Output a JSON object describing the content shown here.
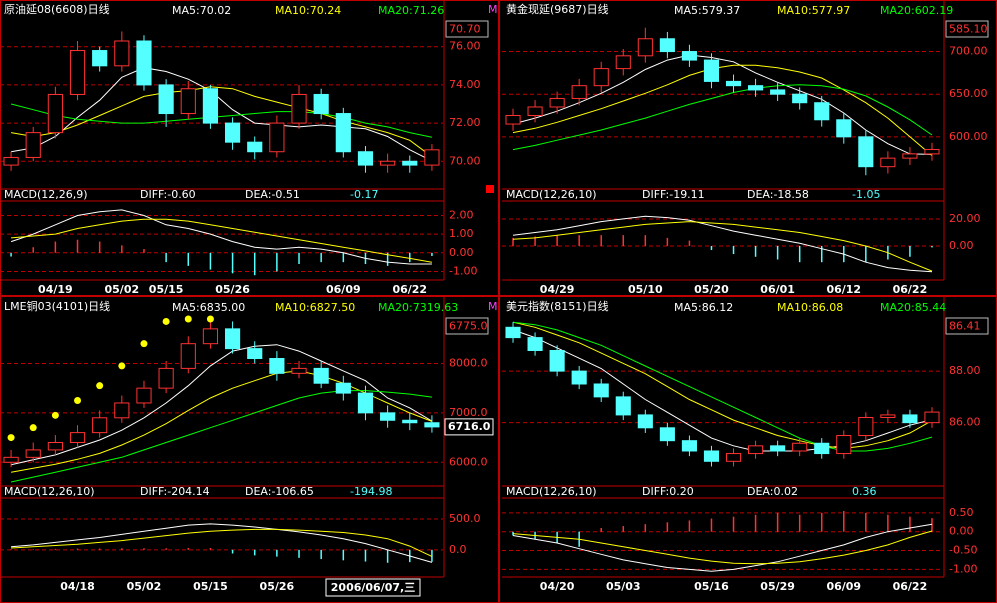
{
  "chart_data": [
    {
      "type": "candlestick",
      "title": "原油延08(6608)日线",
      "overflow_label": "M",
      "price_box": "70.70",
      "categories": [
        null,
        null,
        "04/19",
        null,
        null,
        "05/02",
        null,
        "05/15",
        null,
        null,
        "05/26",
        null,
        null,
        null,
        null,
        "06/09",
        null,
        null,
        "06/22",
        null
      ],
      "open": [
        69.8,
        70.2,
        71.5,
        73.5,
        75.8,
        75.0,
        76.3,
        74.0,
        72.5,
        73.8,
        72.0,
        71.0,
        70.5,
        72.0,
        73.5,
        72.5,
        70.5,
        69.8,
        70.0,
        69.8
      ],
      "high": [
        70.5,
        71.8,
        73.9,
        76.3,
        76.0,
        76.8,
        76.6,
        74.3,
        74.2,
        74.0,
        72.3,
        71.3,
        72.4,
        74.0,
        73.8,
        72.8,
        70.8,
        70.4,
        70.3,
        70.9
      ],
      "low": [
        69.5,
        70.0,
        71.2,
        73.2,
        74.7,
        74.7,
        73.7,
        71.8,
        72.2,
        71.7,
        70.6,
        70.1,
        70.2,
        71.7,
        72.2,
        70.2,
        69.4,
        69.4,
        69.4,
        69.5
      ],
      "close": [
        70.2,
        71.5,
        73.5,
        75.8,
        75.0,
        76.3,
        74.0,
        72.5,
        73.8,
        72.0,
        71.0,
        70.5,
        72.0,
        73.5,
        72.5,
        70.5,
        69.8,
        70.0,
        69.8,
        70.6
      ],
      "series": [
        {
          "name": "MA5:70.02",
          "color": "#ffffff",
          "values": [
            70.5,
            70.7,
            71.3,
            72.3,
            73.2,
            74.4,
            74.9,
            74.7,
            74.3,
            73.7,
            72.7,
            72.0,
            71.9,
            71.8,
            71.9,
            71.8,
            71.7,
            71.3,
            70.6,
            70.02
          ]
        },
        {
          "name": "MA10:70.24",
          "color": "#ffff00",
          "values": [
            71.5,
            71.3,
            71.5,
            71.9,
            72.4,
            72.9,
            73.4,
            73.6,
            73.7,
            73.9,
            73.8,
            73.4,
            73.1,
            72.8,
            72.5,
            72.1,
            71.8,
            71.5,
            71.1,
            70.24
          ]
        },
        {
          "name": "MA20:71.26",
          "color": "#00ff00",
          "values": [
            73.0,
            72.7,
            72.4,
            72.2,
            72.1,
            72.0,
            72.0,
            72.1,
            72.2,
            72.3,
            72.4,
            72.5,
            72.6,
            72.6,
            72.5,
            72.3,
            72.0,
            71.8,
            71.5,
            71.26
          ]
        }
      ],
      "ylim": [
        68.6,
        77.4
      ],
      "yticks": [
        {
          "value": 70,
          "label": "70.00"
        },
        {
          "value": 72,
          "label": "72.00"
        },
        {
          "value": 74,
          "label": "74.00"
        },
        {
          "value": 76,
          "label": "76.00"
        }
      ],
      "macd": {
        "title": "MACD(12,26,9)",
        "diff_label": "DIFF:-0.60",
        "dea_label": "DEA:-0.51",
        "macd_label": "-0.17",
        "diff": [
          0.6,
          1.0,
          1.5,
          2.0,
          2.2,
          2.3,
          2.0,
          1.5,
          1.3,
          1.0,
          0.6,
          0.3,
          0.2,
          0.3,
          0.2,
          0.0,
          -0.3,
          -0.5,
          -0.6,
          -0.6
        ],
        "dea": [
          0.8,
          0.9,
          1.0,
          1.3,
          1.5,
          1.7,
          1.8,
          1.8,
          1.7,
          1.5,
          1.3,
          1.1,
          0.9,
          0.7,
          0.5,
          0.3,
          0.1,
          -0.1,
          -0.3,
          -0.51
        ],
        "hist": [
          -0.2,
          0.3,
          0.6,
          0.7,
          0.6,
          0.4,
          0.2,
          -0.5,
          -0.7,
          -0.9,
          -1.1,
          -1.2,
          -1.0,
          -0.6,
          -0.5,
          -0.5,
          -0.6,
          -0.7,
          -0.5,
          -0.17
        ],
        "ylim": [
          -1.35,
          2.4
        ],
        "yticks": [
          {
            "value": -1,
            "label": "-1.00"
          },
          {
            "value": 0,
            "label": "0.00"
          },
          {
            "value": 1,
            "label": "1.00"
          },
          {
            "value": 2,
            "label": "2.00"
          }
        ]
      }
    },
    {
      "type": "candlestick",
      "title": "黄金现延(9687)日线",
      "price_box": "585.10",
      "categories": [
        null,
        null,
        "04/29",
        null,
        null,
        null,
        "05/10",
        null,
        null,
        "05/20",
        null,
        null,
        "06/01",
        null,
        null,
        "06/12",
        null,
        null,
        "06/22",
        null
      ],
      "open": [
        615,
        625,
        635,
        645,
        660,
        680,
        695,
        715,
        700,
        690,
        665,
        660,
        655,
        650,
        640,
        620,
        600,
        565,
        575,
        580
      ],
      "high": [
        633,
        643,
        653,
        668,
        688,
        703,
        728,
        723,
        708,
        698,
        673,
        668,
        663,
        658,
        648,
        628,
        608,
        583,
        588,
        593
      ],
      "low": [
        607,
        617,
        627,
        637,
        652,
        672,
        687,
        692,
        682,
        657,
        652,
        647,
        642,
        632,
        612,
        592,
        555,
        557,
        567,
        572
      ],
      "close": [
        625,
        635,
        645,
        660,
        680,
        695,
        715,
        700,
        690,
        665,
        660,
        655,
        650,
        640,
        620,
        600,
        565,
        575,
        580,
        585.1
      ],
      "series": [
        {
          "name": "MA5:579.37",
          "color": "#ffffff",
          "values": [
            615,
            622,
            630,
            640,
            651,
            664,
            679,
            690,
            696,
            693,
            688,
            675,
            664,
            654,
            644,
            628,
            608,
            592,
            580,
            579.37
          ]
        },
        {
          "name": "MA10:577.97",
          "color": "#ffff00",
          "values": [
            605,
            610,
            617,
            625,
            633,
            642,
            651,
            661,
            672,
            680,
            684,
            684,
            681,
            676,
            669,
            655,
            640,
            622,
            600,
            577.97
          ]
        },
        {
          "name": "MA20:602.19",
          "color": "#00ff00",
          "values": [
            585,
            590,
            596,
            602,
            608,
            615,
            622,
            630,
            638,
            645,
            652,
            657,
            660,
            661,
            660,
            656,
            648,
            635,
            620,
            602.19
          ]
        }
      ],
      "ylim": [
        540,
        737
      ],
      "yticks": [
        {
          "value": 600,
          "label": "600.00"
        },
        {
          "value": 650,
          "label": "650.00"
        },
        {
          "value": 700,
          "label": "700.00"
        }
      ],
      "macd": {
        "title": "MACD(12,26,10)",
        "diff_label": "DIFF:-19.11",
        "dea_label": "DEA:-18.58",
        "macd_label": "-1.05",
        "diff": [
          8,
          10,
          12,
          15,
          18,
          20,
          22,
          21,
          19,
          15,
          11,
          8,
          5,
          2,
          -2,
          -6,
          -12,
          -16,
          -18,
          -19.11
        ],
        "dea": [
          5,
          6,
          8,
          10,
          12,
          14,
          16,
          17,
          18,
          17,
          16,
          14,
          12,
          10,
          7,
          4,
          0,
          -5,
          -12,
          -18.58
        ],
        "hist": [
          6,
          7,
          8,
          8,
          8,
          8,
          8,
          6,
          4,
          -3,
          -6,
          -8,
          -10,
          -12,
          -12,
          -12,
          -12,
          -10,
          -8,
          -1.05
        ],
        "ylim": [
          -23.7,
          28.1
        ],
        "yticks": [
          {
            "value": 0,
            "label": "0.00"
          },
          {
            "value": 20,
            "label": "20.00"
          }
        ]
      }
    },
    {
      "type": "candlestick",
      "title": "LME铜03(4101)日线",
      "overflow_label": "M",
      "price_box": "6775.0",
      "current_price": {
        "value": 6716,
        "label": "6716.0"
      },
      "cursor_label": "2006/06/07,三",
      "categories": [
        null,
        null,
        null,
        "04/18",
        null,
        null,
        "05/02",
        null,
        null,
        "05/15",
        null,
        null,
        "05/26",
        null,
        null,
        null,
        null,
        null,
        null,
        null
      ],
      "open": [
        6000,
        6100,
        6250,
        6400,
        6600,
        6900,
        7200,
        7500,
        7900,
        8400,
        8700,
        8300,
        8100,
        7800,
        7900,
        7600,
        7400,
        7000,
        6850,
        6800
      ],
      "high": [
        6250,
        6400,
        6550,
        6750,
        7050,
        7350,
        7650,
        8050,
        8550,
        8850,
        8850,
        8450,
        8250,
        8050,
        8050,
        7750,
        7550,
        7150,
        7000,
        6950
      ],
      "low": [
        5900,
        6000,
        6150,
        6300,
        6500,
        6800,
        7100,
        7400,
        7800,
        8300,
        8200,
        8000,
        7650,
        7700,
        7500,
        7250,
        6850,
        6700,
        6650,
        6600
      ],
      "close": [
        6100,
        6250,
        6400,
        6600,
        6900,
        7200,
        7500,
        7900,
        8400,
        8700,
        8300,
        8100,
        7800,
        7900,
        7600,
        7400,
        7000,
        6850,
        6800,
        6716
      ],
      "dots": [
        6500,
        6700,
        6950,
        7250,
        7550,
        7950,
        8400,
        8850,
        8900,
        8900,
        null,
        null,
        null,
        null,
        null,
        null,
        null,
        null,
        null,
        null
      ],
      "series": [
        {
          "name": "MA5:6835.00",
          "color": "#ffffff",
          "values": [
            5950,
            6050,
            6150,
            6300,
            6450,
            6650,
            6900,
            7200,
            7550,
            7950,
            8250,
            8350,
            8380,
            8250,
            8050,
            7850,
            7650,
            7300,
            7100,
            6835
          ]
        },
        {
          "name": "MA10:6827.50",
          "color": "#ffff00",
          "values": [
            5800,
            5880,
            5960,
            6060,
            6180,
            6350,
            6550,
            6780,
            7050,
            7300,
            7500,
            7650,
            7800,
            7850,
            7750,
            7600,
            7400,
            7200,
            7000,
            6827.5
          ]
        },
        {
          "name": "MA20:7319.63",
          "color": "#00ff00",
          "values": [
            5600,
            5700,
            5800,
            5900,
            6000,
            6100,
            6250,
            6400,
            6550,
            6700,
            6850,
            7000,
            7150,
            7300,
            7400,
            7450,
            7450,
            7420,
            7380,
            7319.63
          ]
        }
      ],
      "ylim": [
        5540,
        8940
      ],
      "yticks": [
        {
          "value": 6000,
          "label": "6000.0"
        },
        {
          "value": 7000,
          "label": "7000.0"
        },
        {
          "value": 8000,
          "label": "8000.0"
        }
      ],
      "macd": {
        "title": "MACD(12,26,10)",
        "diff_label": "DIFF:-204.14",
        "dea_label": "DEA:-106.65",
        "macd_label": "-194.98",
        "diff": [
          50,
          80,
          120,
          160,
          200,
          250,
          300,
          350,
          400,
          420,
          400,
          370,
          330,
          290,
          240,
          180,
          100,
          0,
          -100,
          -204.14
        ],
        "dea": [
          30,
          50,
          70,
          90,
          120,
          150,
          190,
          230,
          270,
          300,
          320,
          330,
          330,
          320,
          300,
          280,
          240,
          180,
          60,
          -106.65
        ],
        "hist": [
          10,
          10,
          15,
          20,
          20,
          25,
          25,
          25,
          30,
          30,
          -60,
          -90,
          -110,
          -130,
          -150,
          -170,
          -190,
          -210,
          -200,
          -194.98
        ],
        "ylim": [
          -408,
          726
        ],
        "yticks": [
          {
            "value": 0,
            "label": "0.0"
          },
          {
            "value": 500,
            "label": "500.0"
          }
        ]
      }
    },
    {
      "type": "candlestick",
      "title": "美元指数(8151)日线",
      "price_box": "86.41",
      "categories": [
        null,
        null,
        "04/20",
        null,
        null,
        "05/03",
        null,
        null,
        null,
        "05/16",
        null,
        null,
        "05/29",
        null,
        null,
        "06/09",
        null,
        null,
        "06/22",
        null
      ],
      "open": [
        89.7,
        89.3,
        88.8,
        88.0,
        87.5,
        87.0,
        86.3,
        85.8,
        85.3,
        84.9,
        84.5,
        84.8,
        85.1,
        84.9,
        85.2,
        84.8,
        85.5,
        86.2,
        86.3,
        86.0
      ],
      "high": [
        89.9,
        89.5,
        89.0,
        88.2,
        87.7,
        87.2,
        86.5,
        86.0,
        85.5,
        85.1,
        85.0,
        85.3,
        85.3,
        85.4,
        85.4,
        85.7,
        86.4,
        86.5,
        86.5,
        86.6
      ],
      "low": [
        89.1,
        88.6,
        87.8,
        87.3,
        86.8,
        86.1,
        85.6,
        85.1,
        84.7,
        84.3,
        84.3,
        84.6,
        84.7,
        84.7,
        84.6,
        84.6,
        85.3,
        86.0,
        85.8,
        85.8
      ],
      "close": [
        89.3,
        88.8,
        88.0,
        87.5,
        87.0,
        86.3,
        85.8,
        85.3,
        84.9,
        84.5,
        84.8,
        85.1,
        84.9,
        85.2,
        84.8,
        85.5,
        86.2,
        86.3,
        86.0,
        86.41
      ],
      "series": [
        {
          "name": "MA5:86.12",
          "color": "#ffffff",
          "values": [
            89.6,
            89.3,
            88.9,
            88.5,
            88.1,
            87.5,
            86.9,
            86.4,
            85.9,
            85.4,
            85.1,
            84.9,
            84.9,
            84.9,
            85.0,
            85.1,
            85.3,
            85.6,
            85.9,
            86.12
          ]
        },
        {
          "name": "MA10:86.08",
          "color": "#ffff00",
          "values": [
            89.9,
            89.7,
            89.4,
            89.1,
            88.7,
            88.3,
            87.9,
            87.4,
            86.9,
            86.5,
            86.1,
            85.8,
            85.5,
            85.3,
            85.1,
            85.0,
            85.1,
            85.3,
            85.6,
            86.08
          ]
        },
        {
          "name": "MA20:85.44",
          "color": "#00ff00",
          "values": [
            89.9,
            89.8,
            89.6,
            89.3,
            89.0,
            88.6,
            88.2,
            87.8,
            87.4,
            87.0,
            86.6,
            86.2,
            85.8,
            85.4,
            85.1,
            84.9,
            84.9,
            85.0,
            85.2,
            85.44
          ]
        }
      ],
      "ylim": [
        83.58,
        90.1
      ],
      "yticks": [
        {
          "value": 86,
          "label": "86.00"
        },
        {
          "value": 88,
          "label": "88.00"
        }
      ],
      "macd": {
        "title": "MACD(12,26,10)",
        "diff_label": "DIFF:0.20",
        "dea_label": "DEA:0.02",
        "macd_label": "0.36",
        "diff": [
          -0.1,
          -0.2,
          -0.3,
          -0.45,
          -0.6,
          -0.75,
          -0.85,
          -0.95,
          -1.0,
          -1.05,
          -1.0,
          -0.9,
          -0.8,
          -0.65,
          -0.5,
          -0.35,
          -0.15,
          0.0,
          0.1,
          0.2
        ],
        "dea": [
          -0.05,
          -0.1,
          -0.15,
          -0.2,
          -0.3,
          -0.4,
          -0.5,
          -0.6,
          -0.7,
          -0.78,
          -0.84,
          -0.85,
          -0.84,
          -0.8,
          -0.72,
          -0.62,
          -0.5,
          -0.35,
          -0.15,
          0.02
        ],
        "hist": [
          -0.1,
          -0.2,
          -0.3,
          -0.4,
          0.1,
          0.15,
          0.2,
          0.25,
          0.3,
          0.35,
          0.4,
          0.45,
          0.5,
          0.45,
          0.5,
          0.55,
          0.5,
          0.45,
          0.4,
          0.36
        ],
        "ylim": [
          -1.15,
          0.71
        ],
        "yticks": [
          {
            "value": -1,
            "label": "-1.00"
          },
          {
            "value": -0.5,
            "label": "-0.50"
          },
          {
            "value": 0,
            "label": "0.00"
          },
          {
            "value": 0.5,
            "label": "0.50"
          }
        ]
      }
    }
  ]
}
